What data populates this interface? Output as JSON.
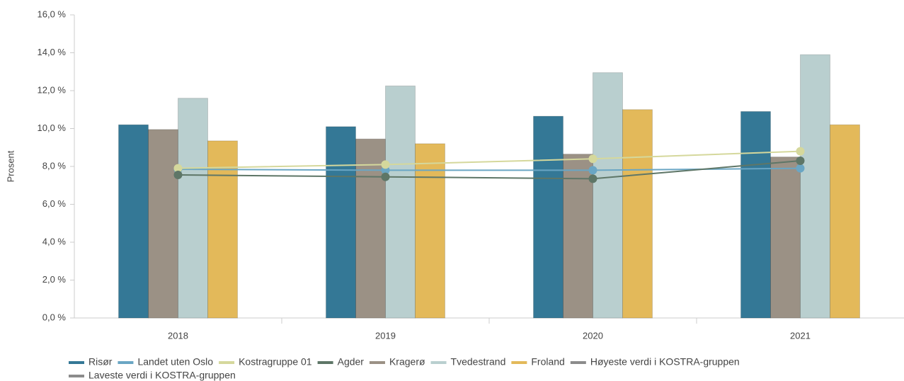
{
  "chart_data": {
    "type": "bar",
    "y_label": "Prosent",
    "categories": [
      "2018",
      "2019",
      "2020",
      "2021"
    ],
    "ylim": [
      0,
      16
    ],
    "yticks": [
      {
        "value": 0,
        "label": "0,0 %"
      },
      {
        "value": 2,
        "label": "2,0 %"
      },
      {
        "value": 4,
        "label": "4,0 %"
      },
      {
        "value": 6,
        "label": "6,0 %"
      },
      {
        "value": 8,
        "label": "8,0 %"
      },
      {
        "value": 10,
        "label": "10,0 %"
      },
      {
        "value": 12,
        "label": "12,0 %"
      },
      {
        "value": 14,
        "label": "14,0 %"
      },
      {
        "value": 16,
        "label": "16,0 %"
      }
    ],
    "series": [
      {
        "name": "Risør",
        "type": "bar",
        "color": "#347896",
        "values": [
          10.2,
          10.1,
          10.65,
          10.9
        ]
      },
      {
        "name": "Landet uten Oslo",
        "type": "line",
        "color": "#6aa6c4",
        "values": [
          7.85,
          7.8,
          7.8,
          7.9
        ]
      },
      {
        "name": "Kostragruppe 01",
        "type": "line",
        "color": "#d5d89c",
        "values": [
          7.9,
          8.1,
          8.4,
          8.8
        ]
      },
      {
        "name": "Agder",
        "type": "line",
        "color": "#5e7667",
        "values": [
          7.55,
          7.45,
          7.35,
          8.3
        ]
      },
      {
        "name": "Kragerø",
        "type": "bar",
        "color": "#9b9185",
        "values": [
          9.95,
          9.45,
          8.65,
          8.5
        ]
      },
      {
        "name": "Tvedestrand",
        "type": "bar",
        "color": "#b9cfcf",
        "values": [
          11.6,
          12.25,
          12.95,
          13.9
        ]
      },
      {
        "name": "Froland",
        "type": "bar",
        "color": "#e3b95a",
        "values": [
          9.35,
          9.2,
          11.0,
          10.2
        ]
      },
      {
        "name": "Høyeste verdi i KOSTRA-gruppen",
        "type": "line",
        "color": "#8c8c8c",
        "visible": false,
        "values": [
          null,
          null,
          null,
          null
        ]
      },
      {
        "name": "Laveste verdi i KOSTRA-gruppen",
        "type": "line",
        "color": "#8c8c8c",
        "visible": false,
        "values": [
          null,
          null,
          null,
          null
        ]
      }
    ]
  }
}
